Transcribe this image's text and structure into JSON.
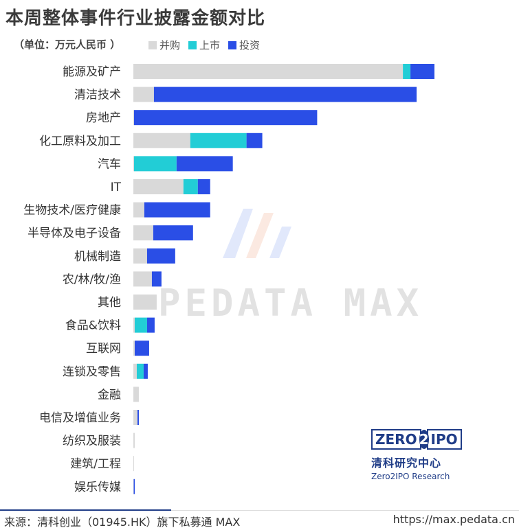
{
  "title": "本周整体事件行业披露金额对比",
  "unit_label": "（单位：万元人民币 ）",
  "colors": {
    "merger": "#d9d9d9",
    "listing": "#22cdd6",
    "investment": "#2a4ee6"
  },
  "watermark": "PEDATA MAX",
  "brand": {
    "logo_left": "ZERO",
    "logo_two": "2",
    "logo_right": "IPO",
    "cn": "清科研究中心",
    "en": "Zero2IPO Research"
  },
  "footer": {
    "source": "来源：清科创业（01945.HK）旗下私募通 MAX",
    "url": "https://max.pedata.cn"
  },
  "chart_data": {
    "type": "bar",
    "orientation": "horizontal",
    "stacked": true,
    "legend_position": "top",
    "categories": [
      "能源及矿产",
      "清洁技术",
      "房地产",
      "化工原料及加工",
      "汽车",
      "IT",
      "生物技术/医疗健康",
      "半导体及电子设备",
      "机械制造",
      "农/林/牧/渔",
      "其他",
      "食品&饮料",
      "互联网",
      "连锁及零售",
      "金融",
      "电信及增值业务",
      "纺织及服装",
      "建筑/工程",
      "娱乐传媒"
    ],
    "series": [
      {
        "name": "并购",
        "key": "merger",
        "values": [
          393,
          30,
          1,
          83,
          1,
          73,
          16,
          29,
          20,
          27,
          34,
          2,
          2,
          5,
          8,
          6,
          2,
          1,
          0.5
        ]
      },
      {
        "name": "上市",
        "key": "listing",
        "values": [
          11,
          0,
          0,
          82,
          62,
          21,
          0,
          0,
          0,
          0,
          0,
          18,
          0,
          10,
          0,
          0,
          0,
          0,
          0
        ]
      },
      {
        "name": "投资",
        "key": "investment",
        "values": [
          35,
          383,
          267,
          23,
          82,
          18,
          96,
          58,
          41,
          14,
          0,
          11,
          21,
          6,
          0,
          2,
          0,
          0,
          1.5
        ]
      }
    ],
    "xlim": [
      0,
      440
    ],
    "grid": false
  }
}
